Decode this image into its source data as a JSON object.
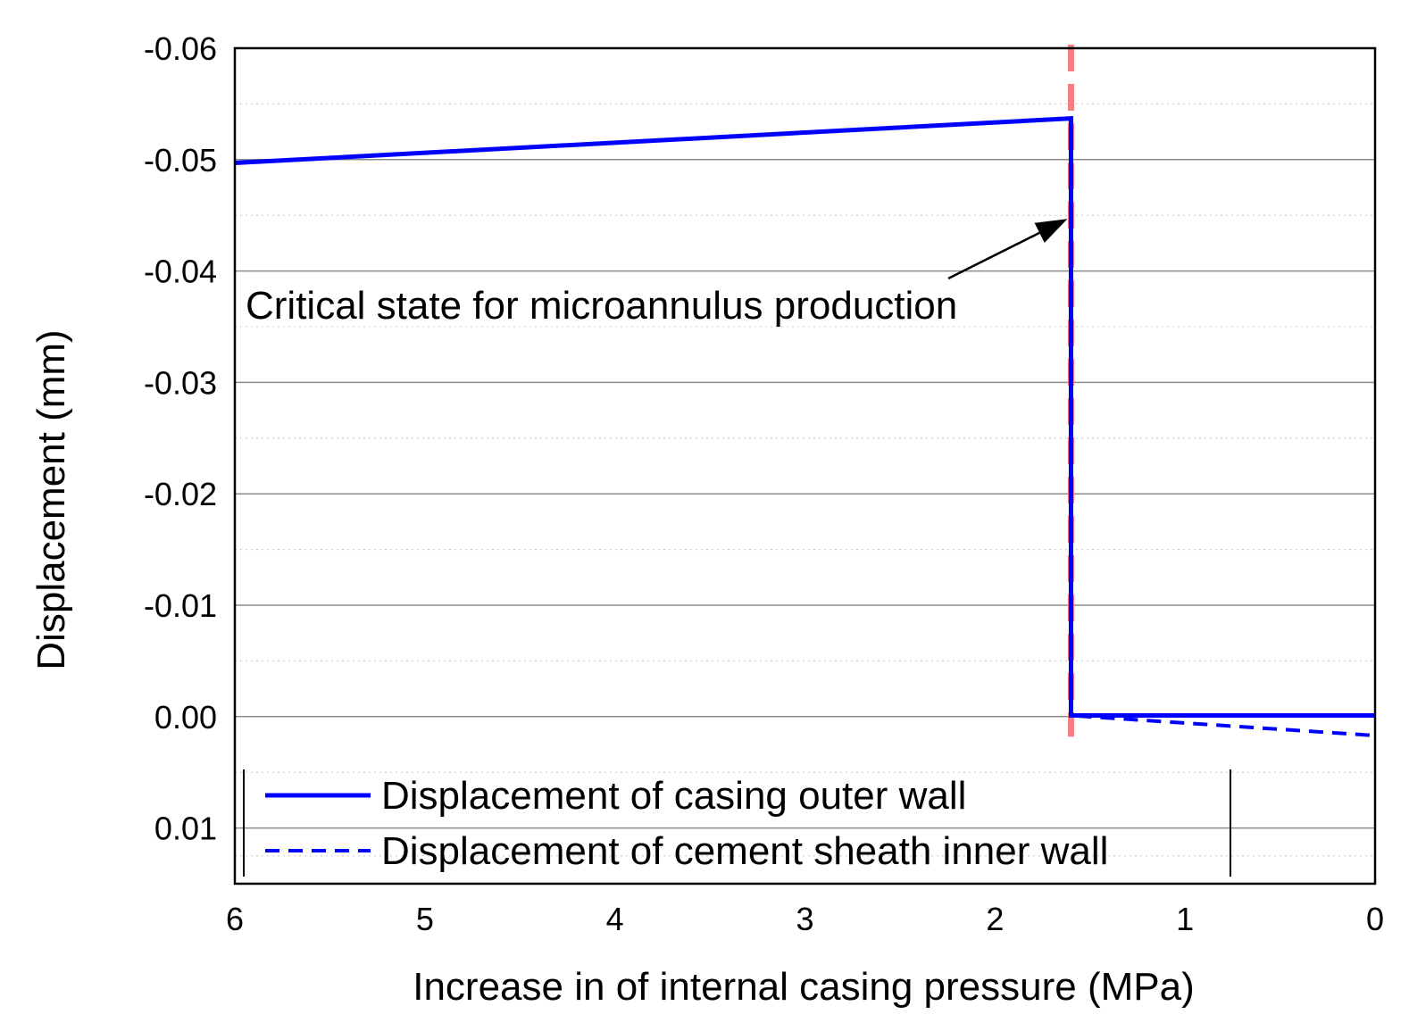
{
  "chart_data": {
    "type": "line",
    "title": "",
    "xlabel": "Increase in of internal casing pressure (MPa)",
    "ylabel": "Displacement (mm)",
    "xlim": [
      6,
      0
    ],
    "ylim": [
      -0.06,
      0.015
    ],
    "x_ticks": [
      6,
      5,
      4,
      3,
      2,
      1,
      0
    ],
    "x_tick_labels": [
      "6",
      "5",
      "4",
      "3",
      "2",
      "1",
      "0"
    ],
    "y_ticks": [
      -0.06,
      -0.05,
      -0.04,
      -0.03,
      -0.02,
      -0.01,
      0.0,
      0.01
    ],
    "y_tick_labels": [
      "-0.06",
      "-0.05",
      "-0.04",
      "-0.03",
      "-0.02",
      "-0.01",
      "0.00",
      "0.01"
    ],
    "grid": true,
    "series": [
      {
        "name": "Displacement of casing outer wall",
        "style": "solid",
        "color": "#0000ff",
        "x": [
          6,
          1.6,
          1.6,
          0
        ],
        "y": [
          -0.0497,
          -0.0537,
          -0.0001,
          -0.0001
        ]
      },
      {
        "name": "Displacement of cement sheath inner wall",
        "style": "dashed",
        "color": "#0000ff",
        "x": [
          1.6,
          1.6,
          0
        ],
        "y": [
          -0.0537,
          -0.0001,
          0.0017
        ]
      }
    ],
    "critical_line": {
      "x": 1.6,
      "color": "#f08080",
      "style": "dashed"
    },
    "annotation": {
      "text": "Critical state for microannulus production",
      "arrow_target": [
        1.64,
        -0.0445
      ]
    },
    "legend_position": "bottom-left"
  }
}
